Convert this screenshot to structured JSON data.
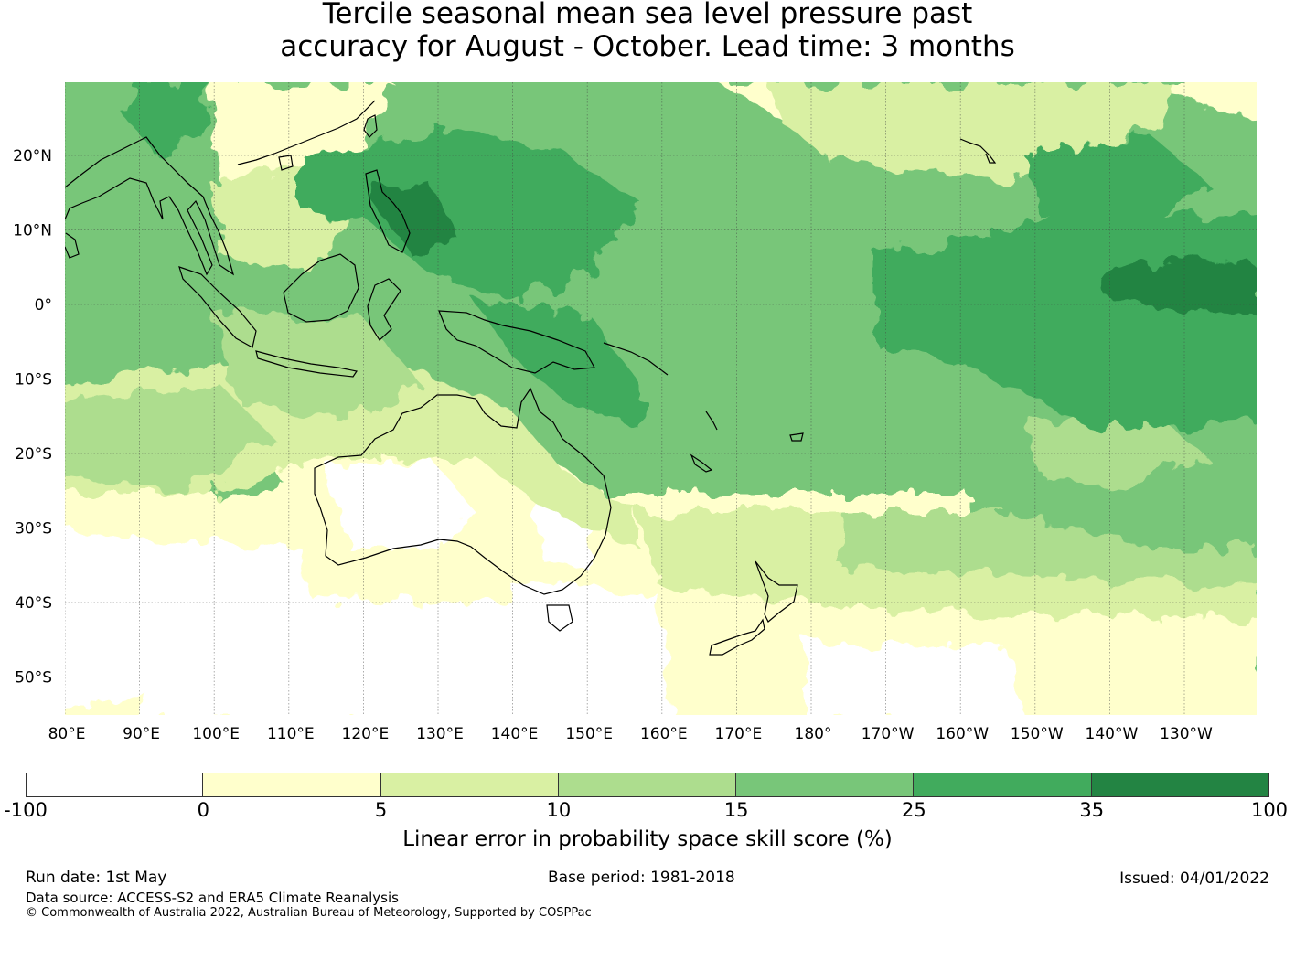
{
  "title": {
    "line1": "Tercile seasonal mean sea level pressure past",
    "line2": "accuracy for August - October. Lead time: 3 months"
  },
  "map": {
    "lat_labels": [
      "20°N",
      "10°N",
      "0°",
      "10°S",
      "20°S",
      "30°S",
      "40°S",
      "50°S"
    ],
    "lon_labels": [
      "80°E",
      "90°E",
      "100°E",
      "110°E",
      "120°E",
      "130°E",
      "140°E",
      "150°E",
      "160°E",
      "170°E",
      "180°",
      "170°W",
      "160°W",
      "150°W",
      "140°W",
      "130°W"
    ]
  },
  "colorbar": {
    "ticks": [
      "-100",
      "0",
      "5",
      "10",
      "15",
      "25",
      "35",
      "100"
    ],
    "colors": [
      "#ffffff",
      "#ffffcc",
      "#d9f0a3",
      "#addd8e",
      "#78c679",
      "#41ab5d",
      "#238443"
    ],
    "label": "Linear error in probability space skill score (%)"
  },
  "footer": {
    "run_date": "Run date: 1st May",
    "base_period": "Base period: 1981-2018",
    "issued": "Issued: 04/01/2022",
    "data_source": "Data source: ACCESS-S2 and ERA5 Climate Reanalysis",
    "copyright": "© Commonwealth of Australia 2022, Australian Bureau of Meteorology, Supported by COSPPac"
  }
}
